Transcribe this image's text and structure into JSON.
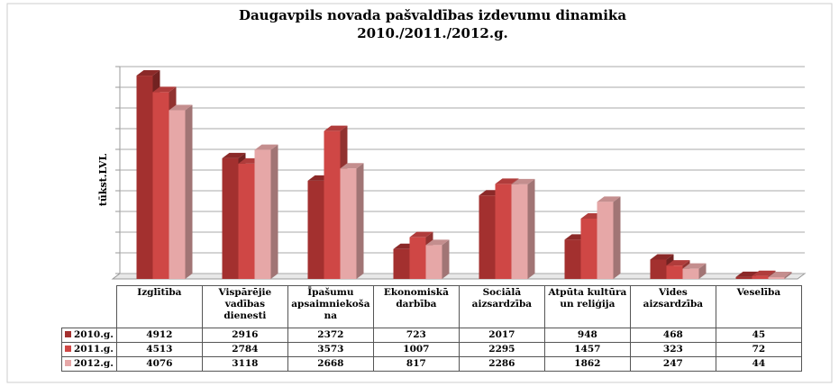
{
  "chart_data": {
    "type": "bar",
    "title": "Daugavpils novada pašvaldības izdevumu dinamika",
    "subtitle": "2010./2011./2012.g.",
    "y_label": "tūkst.LVL",
    "categories": [
      "Izglītība",
      "Vispārējie vadības dienesti",
      "Īpašumu apsaimniekošana",
      "Ekonomiskā darbība",
      "Sociālā aizsardzība",
      "Atpūta kultūra un reliģija",
      "Vides aizsardzība",
      "Veselība"
    ],
    "series": [
      {
        "name": "2010.g.",
        "color": "#a3302f",
        "values": [
          4912,
          2916,
          2372,
          723,
          2017,
          948,
          468,
          45
        ]
      },
      {
        "name": "2011.g.",
        "color": "#cf4745",
        "values": [
          4513,
          2784,
          3573,
          1007,
          2295,
          1457,
          323,
          72
        ]
      },
      {
        "name": "2012.g.",
        "color": "#e6a7a7",
        "values": [
          4076,
          3118,
          2668,
          817,
          2286,
          1862,
          247,
          44
        ]
      }
    ],
    "ylim": [
      0,
      5000
    ],
    "yticks": [
      0,
      500,
      1000,
      1500,
      2000,
      2500,
      3000,
      3500,
      4000,
      4500,
      5000
    ],
    "grid": true
  }
}
